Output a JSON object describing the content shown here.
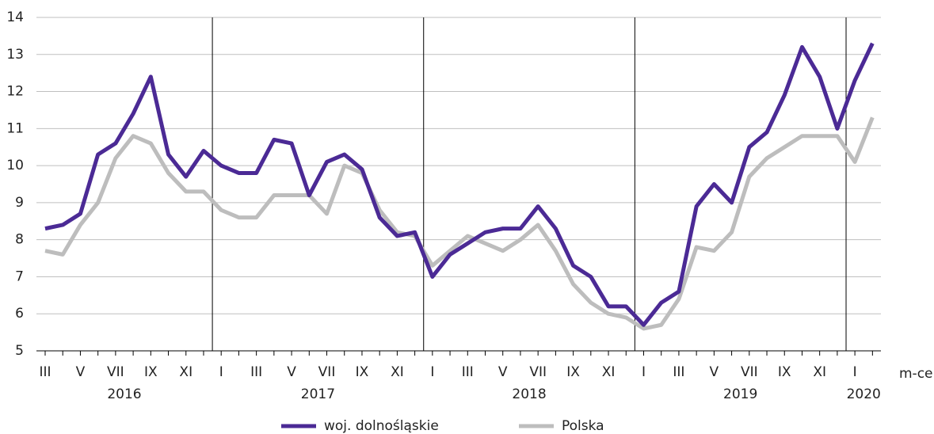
{
  "chart_data": {
    "type": "line",
    "categories": [
      "III",
      null,
      "V",
      null,
      "VII",
      null,
      "IX",
      null,
      "XI",
      null,
      "I",
      null,
      "III",
      null,
      "V",
      null,
      "VII",
      null,
      "IX",
      null,
      "XI",
      null,
      "I",
      null,
      "III",
      null,
      "V",
      null,
      "VII",
      null,
      "IX",
      null,
      "XI",
      null,
      "I",
      null,
      "III",
      null,
      "V",
      null,
      "VII",
      null,
      "IX",
      null,
      "XI",
      null,
      "I",
      null
    ],
    "year_groups": [
      {
        "label": "2016",
        "start": 0,
        "end": 9
      },
      {
        "label": "2017",
        "start": 10,
        "end": 21
      },
      {
        "label": "2018",
        "start": 22,
        "end": 33
      },
      {
        "label": "2019",
        "start": 34,
        "end": 45
      },
      {
        "label": "2020",
        "start": 46,
        "end": 47
      }
    ],
    "x_axis_label": "m-ce",
    "series": [
      {
        "name": "woj. dolnośląskie",
        "color": "#4b2a95",
        "values": [
          8.3,
          8.4,
          8.7,
          10.3,
          10.6,
          11.4,
          12.4,
          10.3,
          9.7,
          10.4,
          10.0,
          9.8,
          9.8,
          10.7,
          10.6,
          9.2,
          10.1,
          10.3,
          9.9,
          8.6,
          8.1,
          8.2,
          7.0,
          7.6,
          7.9,
          8.2,
          8.3,
          8.3,
          8.9,
          8.3,
          7.3,
          7.0,
          6.2,
          6.2,
          5.7,
          6.3,
          6.6,
          8.9,
          9.5,
          9.0,
          10.5,
          10.9,
          11.9,
          13.2,
          12.4,
          11.0,
          12.3,
          13.3
        ]
      },
      {
        "name": "Polska",
        "color": "#bdbdbd",
        "values": [
          7.7,
          7.6,
          8.4,
          9.0,
          10.2,
          10.8,
          10.6,
          9.8,
          9.3,
          9.3,
          8.8,
          8.6,
          8.6,
          9.2,
          9.2,
          9.2,
          8.7,
          10.0,
          9.8,
          8.8,
          8.2,
          8.1,
          7.3,
          7.7,
          8.1,
          7.9,
          7.7,
          8.0,
          8.4,
          7.7,
          6.8,
          6.3,
          6.0,
          5.9,
          5.6,
          5.7,
          6.4,
          7.8,
          7.7,
          8.2,
          9.7,
          10.2,
          10.5,
          10.8,
          10.8,
          10.8,
          10.1,
          11.3
        ]
      }
    ],
    "ylim": [
      5,
      14
    ],
    "yticks": [
      5,
      6,
      7,
      8,
      9,
      10,
      11,
      12,
      13,
      14
    ],
    "grid": true,
    "legend": "bottom"
  }
}
